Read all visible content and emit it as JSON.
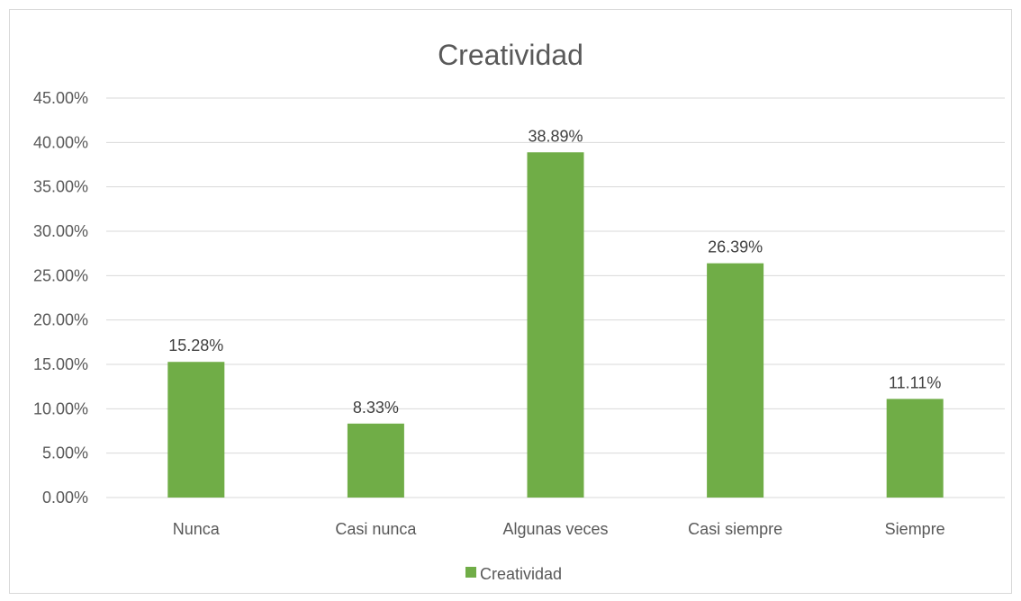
{
  "chart_data": {
    "type": "bar",
    "title": "Creatividad",
    "categories": [
      "Nunca",
      "Casi nunca",
      "Algunas veces",
      "Casi siempre",
      "Siempre"
    ],
    "series": [
      {
        "name": "Creatividad",
        "values": [
          15.28,
          8.33,
          38.89,
          26.39,
          11.11
        ],
        "labels": [
          "15.28%",
          "8.33%",
          "38.89%",
          "26.39%",
          "11.11%"
        ]
      }
    ],
    "ylim": [
      0,
      45
    ],
    "y_ticks": [
      0,
      5,
      10,
      15,
      20,
      25,
      30,
      35,
      40,
      45
    ],
    "y_tick_labels": [
      "0.00%",
      "5.00%",
      "10.00%",
      "15.00%",
      "20.00%",
      "25.00%",
      "30.00%",
      "35.00%",
      "40.00%",
      "45.00%"
    ],
    "xlabel": "",
    "ylabel": "",
    "grid": true,
    "legend_position": "bottom",
    "colors": {
      "bar": "#70ad47",
      "grid": "#d9d9d9",
      "text": "#595959"
    }
  }
}
